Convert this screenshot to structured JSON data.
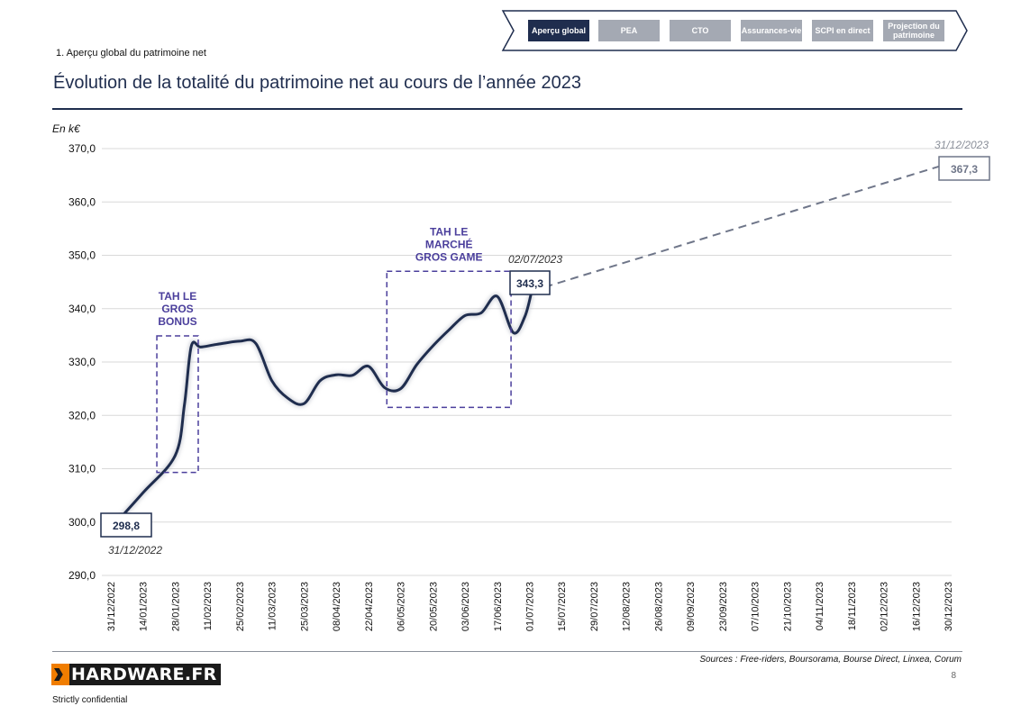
{
  "nav": {
    "tabs": [
      {
        "label": "Aperçu global",
        "active": true
      },
      {
        "label": "PEA",
        "active": false
      },
      {
        "label": "CTO",
        "active": false
      },
      {
        "label": "Assurances-vie",
        "active": false
      },
      {
        "label": "SCPI en direct",
        "active": false
      },
      {
        "label": "Projection du patrimoine",
        "active": false
      }
    ]
  },
  "section_label": "1. Aperçu global du patrimoine net",
  "page_title": "Évolution de la totalité du patrimoine net au cours de l’année 2023",
  "chart_data": {
    "type": "line",
    "ylabel": "En k€",
    "ylim": [
      290,
      370
    ],
    "yticks": [
      290,
      300,
      310,
      320,
      330,
      340,
      350,
      360,
      370
    ],
    "y_tick_labels": [
      "290,0",
      "300,0",
      "310,0",
      "320,0",
      "330,0",
      "340,0",
      "350,0",
      "360,0",
      "370,0"
    ],
    "x_tick_labels": [
      "31/12/2022",
      "14/01/2023",
      "28/01/2023",
      "11/02/2023",
      "25/02/2023",
      "11/03/2023",
      "25/03/2023",
      "08/04/2023",
      "22/04/2023",
      "06/05/2023",
      "20/05/2023",
      "03/06/2023",
      "17/06/2023",
      "01/07/2023",
      "15/07/2023",
      "29/07/2023",
      "12/08/2023",
      "26/08/2023",
      "09/09/2023",
      "23/09/2023",
      "07/10/2023",
      "21/10/2023",
      "04/11/2023",
      "18/11/2023",
      "02/12/2023",
      "16/12/2023",
      "30/12/2023"
    ],
    "grid": "horizontal",
    "series": [
      {
        "style": "solid",
        "points": [
          [
            "2022-12-31",
            298.8
          ],
          [
            "2023-01-14",
            305.5
          ],
          [
            "2023-01-28",
            312.5
          ],
          [
            "2023-02-01",
            322.0
          ],
          [
            "2023-02-04",
            333.0
          ],
          [
            "2023-02-08",
            332.8
          ],
          [
            "2023-02-15",
            333.3
          ],
          [
            "2023-02-25",
            333.9
          ],
          [
            "2023-03-04",
            333.5
          ],
          [
            "2023-03-11",
            326.5
          ],
          [
            "2023-03-18",
            323.2
          ],
          [
            "2023-03-25",
            322.2
          ],
          [
            "2023-04-01",
            326.5
          ],
          [
            "2023-04-08",
            327.6
          ],
          [
            "2023-04-15",
            327.5
          ],
          [
            "2023-04-22",
            329.2
          ],
          [
            "2023-04-29",
            325.2
          ],
          [
            "2023-05-06",
            325.0
          ],
          [
            "2023-05-13",
            329.5
          ],
          [
            "2023-05-20",
            333.0
          ],
          [
            "2023-05-27",
            336.0
          ],
          [
            "2023-06-03",
            338.7
          ],
          [
            "2023-06-10",
            339.2
          ],
          [
            "2023-06-17",
            342.3
          ],
          [
            "2023-06-24",
            335.5
          ],
          [
            "2023-06-29",
            338.5
          ],
          [
            "2023-07-02",
            343.3
          ]
        ]
      },
      {
        "style": "dashed",
        "points": [
          [
            "2023-07-02",
            343.3
          ],
          [
            "2023-12-31",
            367.3
          ]
        ]
      }
    ],
    "value_labels": [
      {
        "value": "298,8",
        "date": "31/12/2022"
      },
      {
        "value": "343,3",
        "date": "02/07/2023"
      },
      {
        "value": "367,3",
        "date": "31/12/2023"
      }
    ],
    "annotations": [
      {
        "lines": [
          "TAH LE",
          "GROS",
          "BONUS"
        ],
        "x_range": [
          "2023-01-20",
          "2023-02-07"
        ],
        "y_range": [
          309.3,
          334.9
        ]
      },
      {
        "lines": [
          "TAH LE",
          "MARCHÉ",
          "GROS GAME"
        ],
        "x_range": [
          "2023-04-30",
          "2023-06-23"
        ],
        "y_range": [
          321.5,
          347.0
        ]
      }
    ]
  },
  "footer": {
    "sources": "Sources : Free-riders, Boursorama, Bourse Direct, Linxea, Corum",
    "page_number": "8",
    "logo_text": "HARDWARE.FR",
    "confidential": "Strictly confidential"
  },
  "colors": {
    "navy": "#1f2d4e",
    "tab_inactive": "#a4a9b3",
    "annotation": "#4b3f9c",
    "projection": "#6f7689",
    "grid": "#d9d9d9"
  }
}
